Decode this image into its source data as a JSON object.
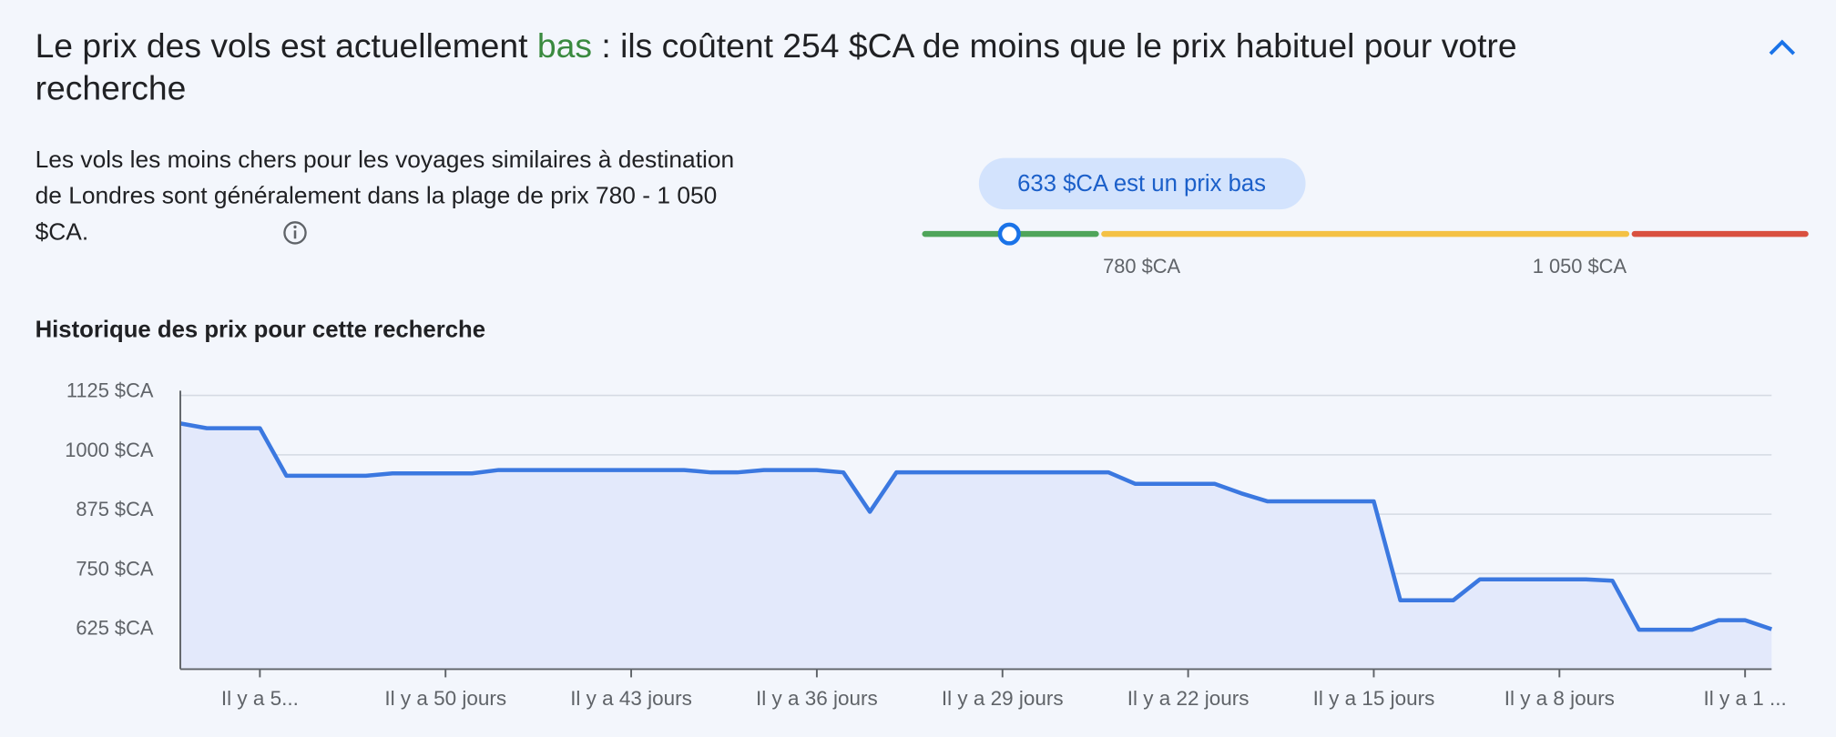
{
  "header": {
    "title_before": "Le prix des vols est actuellement ",
    "title_highlight": "bas",
    "title_after": " : ils coûtent 254 $CA de moins que le prix habituel pour votre recherche"
  },
  "description": "Les vols les moins chers pour les voyages similaires à destination de Londres sont généralement dans la plage de prix 780 - 1 050 $CA.",
  "price_range": {
    "marker_label": "633 $CA est un prix bas",
    "low_label": "780 $CA",
    "high_label": "1 050 $CA"
  },
  "chart_data": {
    "type": "line",
    "title": "Historique des prix pour cette recherche",
    "x": [
      60,
      59,
      58,
      57,
      56,
      55,
      54,
      53,
      52,
      51,
      50,
      49,
      48,
      47,
      46,
      45,
      44,
      43,
      42,
      41,
      40,
      39,
      38,
      37,
      36,
      35,
      34,
      33,
      32,
      31,
      30,
      29,
      28,
      27,
      26,
      25,
      24,
      23,
      22,
      21,
      20,
      19,
      18,
      17,
      16,
      15,
      14,
      13,
      12,
      11,
      10,
      9,
      8,
      7,
      6,
      5,
      4,
      3,
      2,
      1,
      0
    ],
    "series": [
      {
        "name": "Prix",
        "color": "#3b78e0",
        "fill": "#e3e9fb",
        "values": [
          1066,
          1056,
          1056,
          1056,
          956,
          956,
          956,
          956,
          961,
          961,
          961,
          961,
          968,
          968,
          968,
          968,
          968,
          968,
          968,
          968,
          963,
          963,
          968,
          968,
          968,
          963,
          880,
          963,
          963,
          963,
          963,
          963,
          963,
          963,
          963,
          963,
          939,
          939,
          939,
          939,
          919,
          902,
          902,
          902,
          902,
          902,
          694,
          694,
          694,
          738,
          738,
          738,
          738,
          738,
          735,
          632,
          632,
          632,
          652,
          652,
          633
        ]
      }
    ],
    "xlim": [
      60,
      0
    ],
    "xticks": [
      {
        "value": 57,
        "label": "Il y a 5..."
      },
      {
        "value": 50,
        "label": "Il y a 50 jours"
      },
      {
        "value": 43,
        "label": "Il y a 43 jours"
      },
      {
        "value": 36,
        "label": "Il y a 36 jours"
      },
      {
        "value": 29,
        "label": "Il y a 29 jours"
      },
      {
        "value": 22,
        "label": "Il y a 22 jours"
      },
      {
        "value": 15,
        "label": "Il y a 15 jours"
      },
      {
        "value": 8,
        "label": "Il y a 8 jours"
      },
      {
        "value": 1,
        "label": "Il y a 1 ..."
      }
    ],
    "ylim": [
      549,
      1125
    ],
    "yticks": [
      {
        "value": 625,
        "label": "625 $CA"
      },
      {
        "value": 750,
        "label": "750 $CA"
      },
      {
        "value": 875,
        "label": "875 $CA"
      },
      {
        "value": 1000,
        "label": "1000 $CA"
      },
      {
        "value": 1125,
        "label": "1125 $CA"
      }
    ],
    "grid": true
  }
}
